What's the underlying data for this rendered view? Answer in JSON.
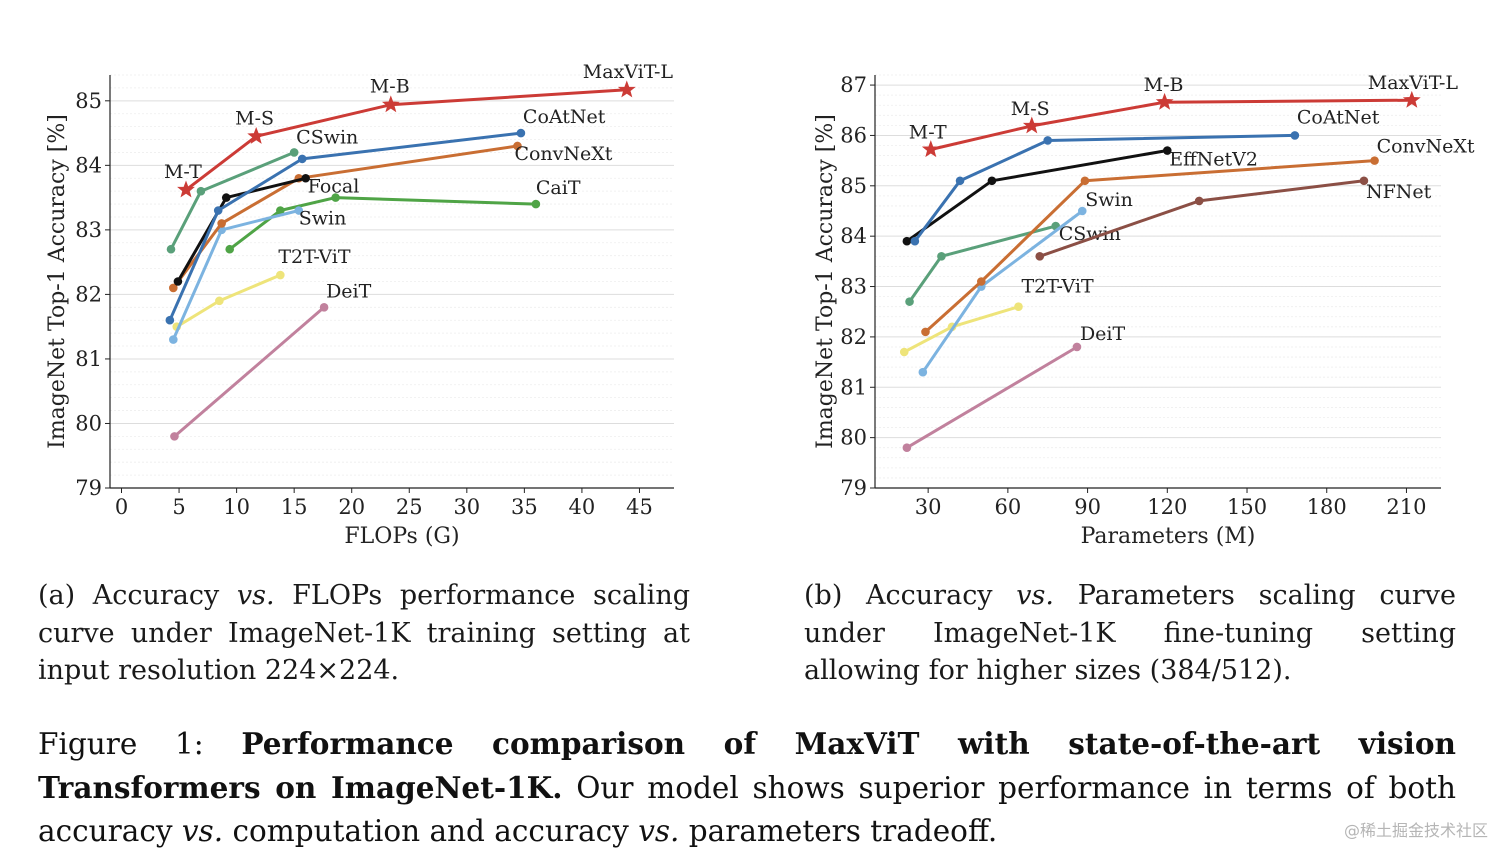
{
  "chart_data": [
    {
      "type": "line",
      "xlabel": "FLOPs (G)",
      "ylabel": "ImageNet Top-1 Accuracy [%]",
      "xlim": [
        -1,
        48
      ],
      "ylim": [
        79,
        85.4
      ],
      "xticks": [
        0,
        5,
        10,
        15,
        20,
        25,
        30,
        35,
        40,
        45
      ],
      "yticks": [
        79,
        80,
        81,
        82,
        83,
        84,
        85
      ],
      "grid": "horizontal",
      "series": [
        {
          "name": "DeiT",
          "color": "#c1819d",
          "marker": "circle",
          "x": [
            4.6,
            17.6
          ],
          "y": [
            79.8,
            81.8
          ]
        },
        {
          "name": "T2T-ViT",
          "color": "#eee47a",
          "marker": "circle",
          "x": [
            4.8,
            8.5,
            13.8
          ],
          "y": [
            81.5,
            81.9,
            82.3
          ]
        },
        {
          "name": "CaiT",
          "color": "#4fa446",
          "marker": "circle",
          "x": [
            9.4,
            13.8,
            18.6,
            36.0
          ],
          "y": [
            82.7,
            83.3,
            83.5,
            83.4
          ]
        },
        {
          "name": "Swin",
          "color": "#7cb3e0",
          "marker": "circle",
          "x": [
            4.5,
            8.7,
            15.4
          ],
          "y": [
            81.3,
            83.0,
            83.3
          ]
        },
        {
          "name": "ConvNeXt",
          "color": "#c96e33",
          "marker": "circle",
          "x": [
            4.5,
            8.7,
            15.4,
            34.4
          ],
          "y": [
            82.1,
            83.1,
            83.8,
            84.3
          ]
        },
        {
          "name": "Focal",
          "color": "#111111",
          "marker": "circle",
          "x": [
            4.9,
            9.1,
            16.0
          ],
          "y": [
            82.2,
            83.5,
            83.8
          ]
        },
        {
          "name": "CoAtNet",
          "color": "#3a72b0",
          "marker": "circle",
          "x": [
            4.2,
            8.4,
            15.7,
            34.7
          ],
          "y": [
            81.6,
            83.3,
            84.1,
            84.5
          ]
        },
        {
          "name": "CSwin",
          "color": "#5aa07a",
          "marker": "circle",
          "x": [
            4.3,
            6.9,
            15.0
          ],
          "y": [
            82.7,
            83.6,
            84.2
          ]
        },
        {
          "name": "MaxViT",
          "color": "#cc3b36",
          "marker": "star",
          "x": [
            5.6,
            11.7,
            23.4,
            43.9
          ],
          "y": [
            83.62,
            84.45,
            84.94,
            85.17
          ]
        }
      ],
      "annotations": [
        {
          "text": "M-T",
          "x": 5.6,
          "y": 83.62
        },
        {
          "text": "M-S",
          "x": 11.7,
          "y": 84.45
        },
        {
          "text": "M-B",
          "x": 23.4,
          "y": 84.94
        },
        {
          "text": "MaxViT-L",
          "x": 43.9,
          "y": 85.17
        }
      ]
    },
    {
      "type": "line",
      "xlabel": "Parameters (M)",
      "ylabel": "ImageNet Top-1 Accuracy [%]",
      "xlim": [
        10,
        223
      ],
      "ylim": [
        79,
        87.2
      ],
      "xticks": [
        30,
        60,
        90,
        120,
        150,
        180,
        210
      ],
      "yticks": [
        79,
        80,
        81,
        82,
        83,
        84,
        85,
        86,
        87
      ],
      "grid": "horizontal",
      "series": [
        {
          "name": "DeiT",
          "color": "#c1819d",
          "marker": "circle",
          "x": [
            22,
            86
          ],
          "y": [
            79.8,
            81.8
          ]
        },
        {
          "name": "T2T-ViT",
          "color": "#eee47a",
          "marker": "circle",
          "x": [
            21,
            39,
            64
          ],
          "y": [
            81.7,
            82.2,
            82.6
          ]
        },
        {
          "name": "CSwin",
          "color": "#5aa07a",
          "marker": "circle",
          "x": [
            23,
            35,
            78
          ],
          "y": [
            82.7,
            83.6,
            84.2
          ]
        },
        {
          "name": "Swin",
          "color": "#7cb3e0",
          "marker": "circle",
          "x": [
            28,
            50,
            88
          ],
          "y": [
            81.3,
            83.0,
            84.5
          ]
        },
        {
          "name": "ConvNeXt",
          "color": "#c96e33",
          "marker": "circle",
          "x": [
            29,
            50,
            89,
            198
          ],
          "y": [
            82.1,
            83.1,
            85.1,
            85.5
          ]
        },
        {
          "name": "NFNet",
          "color": "#8b4f45",
          "marker": "circle",
          "x": [
            72,
            132,
            194
          ],
          "y": [
            83.6,
            84.7,
            85.1
          ]
        },
        {
          "name": "EffNetV2",
          "color": "#111111",
          "marker": "circle",
          "x": [
            22,
            54,
            120
          ],
          "y": [
            83.9,
            85.1,
            85.7
          ]
        },
        {
          "name": "CoAtNet",
          "color": "#3a72b0",
          "marker": "circle",
          "x": [
            25,
            42,
            75,
            168
          ],
          "y": [
            83.9,
            85.1,
            85.9,
            86.0
          ]
        },
        {
          "name": "MaxViT",
          "color": "#cc3b36",
          "marker": "star",
          "x": [
            31,
            69,
            119,
            212
          ],
          "y": [
            85.72,
            86.19,
            86.66,
            86.7
          ]
        }
      ],
      "annotations": [
        {
          "text": "M-T",
          "x": 31,
          "y": 85.72
        },
        {
          "text": "M-S",
          "x": 69,
          "y": 86.19
        },
        {
          "text": "M-B",
          "x": 119,
          "y": 86.66
        },
        {
          "text": "MaxViT-L",
          "x": 212,
          "y": 86.7
        }
      ]
    }
  ],
  "captions": {
    "a_prefix": "(a) Accuracy ",
    "a_vs": "vs.",
    "a_rest": " FLOPs performance scaling curve under ImageNet-1K training setting at input resolution 224×224.",
    "b_prefix": "(b) Accuracy ",
    "b_vs": "vs.",
    "b_rest": " Parameters scaling curve under ImageNet-1K fine-tuning setting allowing for higher sizes (384/512).",
    "fig_label": "Figure 1: ",
    "fig_bold": "Performance comparison of MaxViT with state-of-the-art vision Transformers on ImageNet-1K.",
    "fig_text1": " Our model shows superior performance in terms of both accuracy ",
    "fig_vs1": "vs.",
    "fig_text2": " computation and accuracy ",
    "fig_vs2": "vs.",
    "fig_text3": " parameters tradeoff."
  },
  "watermark": "@稀土掘金技术社区"
}
